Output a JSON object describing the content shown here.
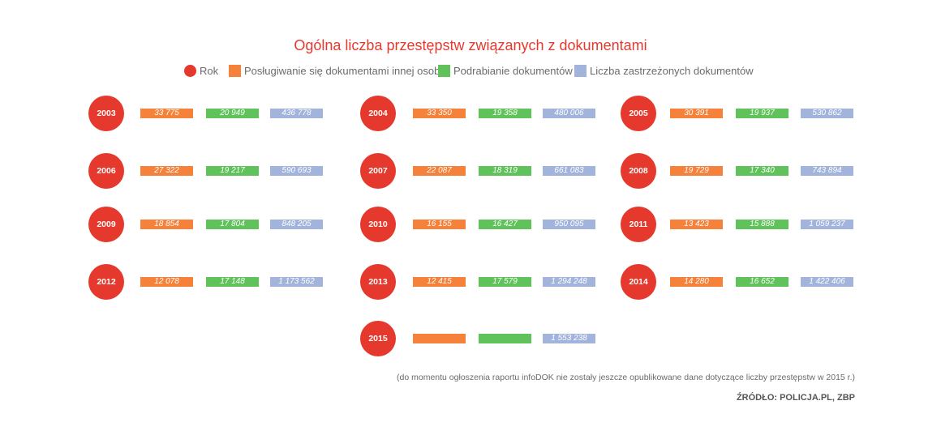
{
  "title": "Ogólna liczba przestępstw związanych z dokumentami",
  "colors": {
    "year": "#e6392e",
    "orange": "#f5813a",
    "green": "#5fc25a",
    "blue": "#a3b4dc"
  },
  "legend": [
    {
      "label": "Rok",
      "color": "#e6392e",
      "shape": "circle"
    },
    {
      "label": "Posługiwanie się dokumentami innej osoby",
      "color": "#f5813a",
      "shape": "square"
    },
    {
      "label": "Podrabianie dokumentów",
      "color": "#5fc25a",
      "shape": "square"
    },
    {
      "label": "Liczba zastrzeżonych dokumentów",
      "color": "#a3b4dc",
      "shape": "square"
    }
  ],
  "chart_data": {
    "type": "table",
    "title": "Ogólna liczba przestępstw związanych z dokumentami",
    "series": [
      {
        "name": "Posługiwanie się dokumentami innej osoby"
      },
      {
        "name": "Podrabianie dokumentów"
      },
      {
        "name": "Liczba zastrzeżonych dokumentów"
      }
    ],
    "rows": [
      {
        "year": "2003",
        "values": [
          "33 775",
          "20 949",
          "436 778"
        ]
      },
      {
        "year": "2004",
        "values": [
          "33 350",
          "19 358",
          "480 006"
        ]
      },
      {
        "year": "2005",
        "values": [
          "30 391",
          "19 937",
          "530 862"
        ]
      },
      {
        "year": "2006",
        "values": [
          "27 322",
          "19 217",
          "590 693"
        ]
      },
      {
        "year": "2007",
        "values": [
          "22 087",
          "18 319",
          "661 083"
        ]
      },
      {
        "year": "2008",
        "values": [
          "19 729",
          "17 340",
          "743 894"
        ]
      },
      {
        "year": "2009",
        "values": [
          "18 854",
          "17 804",
          "848 205"
        ]
      },
      {
        "year": "2010",
        "values": [
          "16 155",
          "16 427",
          "950 095"
        ]
      },
      {
        "year": "2011",
        "values": [
          "13 423",
          "15 888",
          "1 059 237"
        ]
      },
      {
        "year": "2012",
        "values": [
          "12 078",
          "17 148",
          "1 173 562"
        ]
      },
      {
        "year": "2013",
        "values": [
          "12 415",
          "17 579",
          "1 294 248"
        ]
      },
      {
        "year": "2014",
        "values": [
          "14 280",
          "16 652",
          "1 422 406"
        ]
      },
      {
        "year": "2015",
        "values": [
          "",
          "",
          "1 553 238"
        ]
      }
    ]
  },
  "footnote": "(do momentu ogłoszenia raportu infoDOK nie zostały jeszcze opublikowane dane dotyczące liczby przestępstw w 2015 r.)",
  "source": "ŹRÓDŁO: POLICJA.PL, ZBP"
}
